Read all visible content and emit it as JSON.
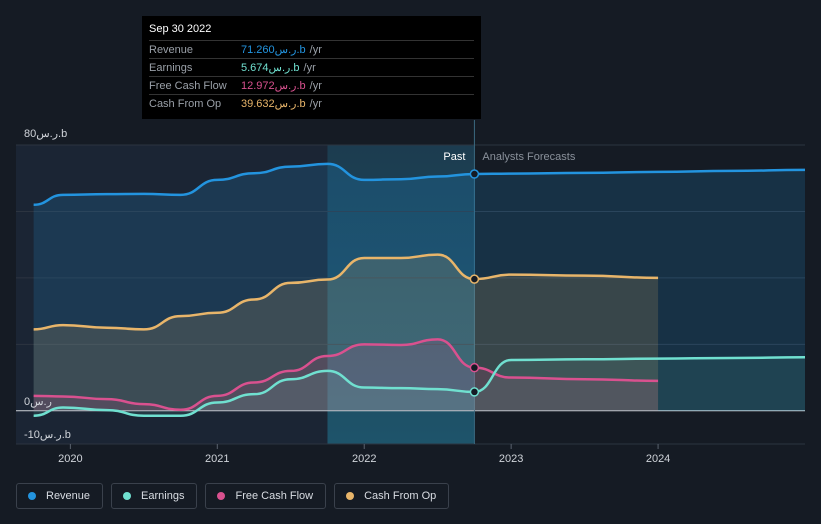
{
  "tooltip": {
    "date": "Sep 30 2022",
    "rows": [
      {
        "label": "Revenue",
        "value": "71.260ر.س.b",
        "unit": "/yr",
        "color": "#2394df"
      },
      {
        "label": "Earnings",
        "value": "5.674ر.س.b",
        "unit": "/yr",
        "color": "#70e0d0"
      },
      {
        "label": "Free Cash Flow",
        "value": "12.972ر.س.b",
        "unit": "/yr",
        "color": "#d9518f"
      },
      {
        "label": "Cash From Op",
        "value": "39.632ر.س.b",
        "unit": "/yr",
        "color": "#e8b56a"
      }
    ]
  },
  "labels": {
    "past": "Past",
    "forecast": "Analysts Forecasts"
  },
  "legend": [
    {
      "label": "Revenue",
      "color": "#2394df"
    },
    {
      "label": "Earnings",
      "color": "#70e0d0"
    },
    {
      "label": "Free Cash Flow",
      "color": "#d9518f"
    },
    {
      "label": "Cash From Op",
      "color": "#e8b56a"
    }
  ],
  "chart_data": {
    "type": "line",
    "ylim": [
      -10,
      80
    ],
    "y_tick_labels": [
      {
        "value": 80,
        "label": "80ر.س.b"
      },
      {
        "value": 0,
        "label": "0ر.س"
      },
      {
        "value": -10,
        "label": "-10ر.س.b"
      }
    ],
    "x_tick_labels": [
      "2020",
      "2021",
      "2022",
      "2023",
      "2024"
    ],
    "x_tick_values": [
      2020,
      2021,
      2022,
      2023,
      2024
    ],
    "past_end": 2022.75,
    "highlight_start": 2021.75,
    "series": [
      {
        "name": "Revenue",
        "color": "#2394df",
        "points": [
          [
            2019.75,
            62
          ],
          [
            2019.95,
            65
          ],
          [
            2020.25,
            65.2
          ],
          [
            2020.5,
            65.3
          ],
          [
            2020.75,
            65
          ],
          [
            2021.0,
            69.5
          ],
          [
            2021.25,
            71.5
          ],
          [
            2021.5,
            73.5
          ],
          [
            2021.75,
            74.3
          ],
          [
            2022.0,
            69.5
          ],
          [
            2022.25,
            69.7
          ],
          [
            2022.5,
            70.5
          ],
          [
            2022.75,
            71.26
          ],
          [
            2023.0,
            71.4
          ],
          [
            2023.5,
            71.6
          ],
          [
            2024.0,
            71.9
          ],
          [
            2024.5,
            72.2
          ],
          [
            2025.0,
            72.5
          ]
        ]
      },
      {
        "name": "Earnings",
        "color": "#70e0d0",
        "points": [
          [
            2019.75,
            -1.5
          ],
          [
            2019.95,
            1
          ],
          [
            2020.25,
            0.2
          ],
          [
            2020.5,
            -1.5
          ],
          [
            2020.75,
            -1.5
          ],
          [
            2021.0,
            2.5
          ],
          [
            2021.25,
            5
          ],
          [
            2021.5,
            9.5
          ],
          [
            2021.75,
            12
          ],
          [
            2022.0,
            7
          ],
          [
            2022.25,
            6.8
          ],
          [
            2022.5,
            6.5
          ],
          [
            2022.75,
            5.674
          ],
          [
            2023.0,
            15.3
          ],
          [
            2023.5,
            15.5
          ],
          [
            2024.0,
            15.7
          ],
          [
            2024.5,
            15.9
          ],
          [
            2025.0,
            16.1
          ]
        ]
      },
      {
        "name": "Free Cash Flow",
        "color": "#d9518f",
        "points": [
          [
            2019.75,
            4.5
          ],
          [
            2019.95,
            4.3
          ],
          [
            2020.25,
            3.5
          ],
          [
            2020.5,
            2
          ],
          [
            2020.75,
            0.3
          ],
          [
            2021.0,
            4.5
          ],
          [
            2021.25,
            8.5
          ],
          [
            2021.5,
            12
          ],
          [
            2021.75,
            16.5
          ],
          [
            2022.0,
            20
          ],
          [
            2022.25,
            19.8
          ],
          [
            2022.5,
            21.5
          ],
          [
            2022.75,
            12.972
          ],
          [
            2023.0,
            10
          ],
          [
            2023.5,
            9.5
          ],
          [
            2024.0,
            9
          ]
        ]
      },
      {
        "name": "Cash From Op",
        "color": "#e8b56a",
        "points": [
          [
            2019.75,
            24.5
          ],
          [
            2019.95,
            25.8
          ],
          [
            2020.25,
            25
          ],
          [
            2020.5,
            24.5
          ],
          [
            2020.75,
            28.5
          ],
          [
            2021.0,
            29.5
          ],
          [
            2021.25,
            33.5
          ],
          [
            2021.5,
            38.5
          ],
          [
            2021.75,
            39.5
          ],
          [
            2022.0,
            46
          ],
          [
            2022.25,
            46
          ],
          [
            2022.5,
            47
          ],
          [
            2022.75,
            39.632
          ],
          [
            2023.0,
            41
          ],
          [
            2023.5,
            40.7
          ],
          [
            2024.0,
            40
          ]
        ]
      }
    ]
  }
}
